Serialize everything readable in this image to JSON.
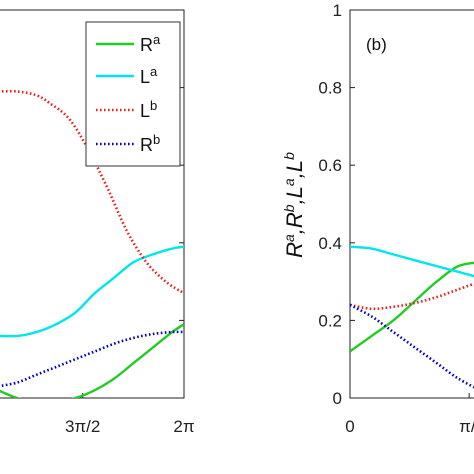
{
  "chart_data": [
    {
      "panel": "a",
      "type": "line",
      "xlabel": "",
      "ylabel": "",
      "xlim": [
        3.4,
        6.2832
      ],
      "ylim": [
        0,
        1
      ],
      "xticks": [
        {
          "value": 4.7124,
          "label": "3π/2",
          "num": "3π",
          "den": "2"
        },
        {
          "value": 6.2832,
          "label": "2π",
          "num": "2π",
          "den": ""
        }
      ],
      "legend": {
        "position": "top-right",
        "entries": [
          {
            "base": "R",
            "sup": "a"
          },
          {
            "base": "L",
            "sup": "a"
          },
          {
            "base": "L",
            "sup": "b"
          },
          {
            "base": "R",
            "sup": "b"
          }
        ]
      },
      "series": [
        {
          "name": "R^a",
          "color": "#22cc22",
          "style": "solid",
          "x": [
            3.4,
            3.7,
            4.0,
            4.3,
            4.6,
            4.9,
            5.2,
            5.5,
            5.8,
            6.1,
            6.2832
          ],
          "y": [
            0.02,
            0.0,
            -0.01,
            -0.01,
            0.0,
            0.02,
            0.05,
            0.09,
            0.13,
            0.17,
            0.19
          ]
        },
        {
          "name": "L^a",
          "color": "#00e5ee",
          "style": "solid",
          "x": [
            3.4,
            3.7,
            4.0,
            4.3,
            4.6,
            4.9,
            5.2,
            5.5,
            5.8,
            6.1,
            6.2832
          ],
          "y": [
            0.16,
            0.16,
            0.17,
            0.19,
            0.22,
            0.27,
            0.31,
            0.35,
            0.37,
            0.385,
            0.39
          ]
        },
        {
          "name": "L^b",
          "color": "#e82020",
          "style": "dotted",
          "x": [
            3.4,
            3.7,
            4.0,
            4.2,
            4.5,
            4.8,
            5.1,
            5.4,
            5.7,
            6.0,
            6.2832
          ],
          "y": [
            0.79,
            0.79,
            0.78,
            0.76,
            0.72,
            0.64,
            0.54,
            0.43,
            0.35,
            0.3,
            0.27
          ]
        },
        {
          "name": "R^b",
          "color": "#0000cc",
          "style": "dotted",
          "x": [
            3.4,
            3.7,
            4.0,
            4.3,
            4.6,
            4.9,
            5.2,
            5.5,
            5.8,
            6.1,
            6.2832
          ],
          "y": [
            0.03,
            0.04,
            0.06,
            0.08,
            0.1,
            0.12,
            0.14,
            0.155,
            0.165,
            0.17,
            0.17
          ]
        }
      ]
    },
    {
      "panel": "b",
      "type": "line",
      "title": "(b)",
      "xlabel": "",
      "ylabel": "R^a,R^b,L^a,L^b",
      "ylabel_parts": [
        {
          "base": "R",
          "sup": "a"
        },
        {
          "base": ",R",
          "sup": "b"
        },
        {
          "base": ",L",
          "sup": "a"
        },
        {
          "base": ",L",
          "sup": "b"
        }
      ],
      "xlim": [
        0,
        1.2
      ],
      "ylim": [
        0,
        1
      ],
      "yticks": [
        "0",
        "0.2",
        "0.4",
        "0.6",
        "0.8",
        "1"
      ],
      "xticks": [
        {
          "value": 0,
          "label": "0"
        },
        {
          "value": 1.1,
          "label": "π/"
        }
      ],
      "series": [
        {
          "name": "R^a",
          "color": "#22cc22",
          "style": "solid",
          "x": [
            0.0,
            0.2,
            0.4,
            0.6,
            0.8,
            1.0,
            1.2
          ],
          "y": [
            0.12,
            0.16,
            0.2,
            0.25,
            0.3,
            0.34,
            0.35
          ]
        },
        {
          "name": "L^a",
          "color": "#00e5ee",
          "style": "solid",
          "x": [
            0.0,
            0.2,
            0.4,
            0.6,
            0.8,
            1.0,
            1.2
          ],
          "y": [
            0.39,
            0.385,
            0.37,
            0.355,
            0.34,
            0.325,
            0.31
          ]
        },
        {
          "name": "L^b",
          "color": "#e82020",
          "style": "dotted",
          "x": [
            0.0,
            0.2,
            0.4,
            0.6,
            0.8,
            1.0,
            1.2
          ],
          "y": [
            0.24,
            0.23,
            0.235,
            0.245,
            0.26,
            0.28,
            0.3
          ]
        },
        {
          "name": "R^b",
          "color": "#0000cc",
          "style": "dotted",
          "x": [
            0.0,
            0.2,
            0.4,
            0.6,
            0.8,
            1.0,
            1.2
          ],
          "y": [
            0.24,
            0.21,
            0.17,
            0.13,
            0.09,
            0.05,
            0.02
          ]
        }
      ]
    }
  ]
}
